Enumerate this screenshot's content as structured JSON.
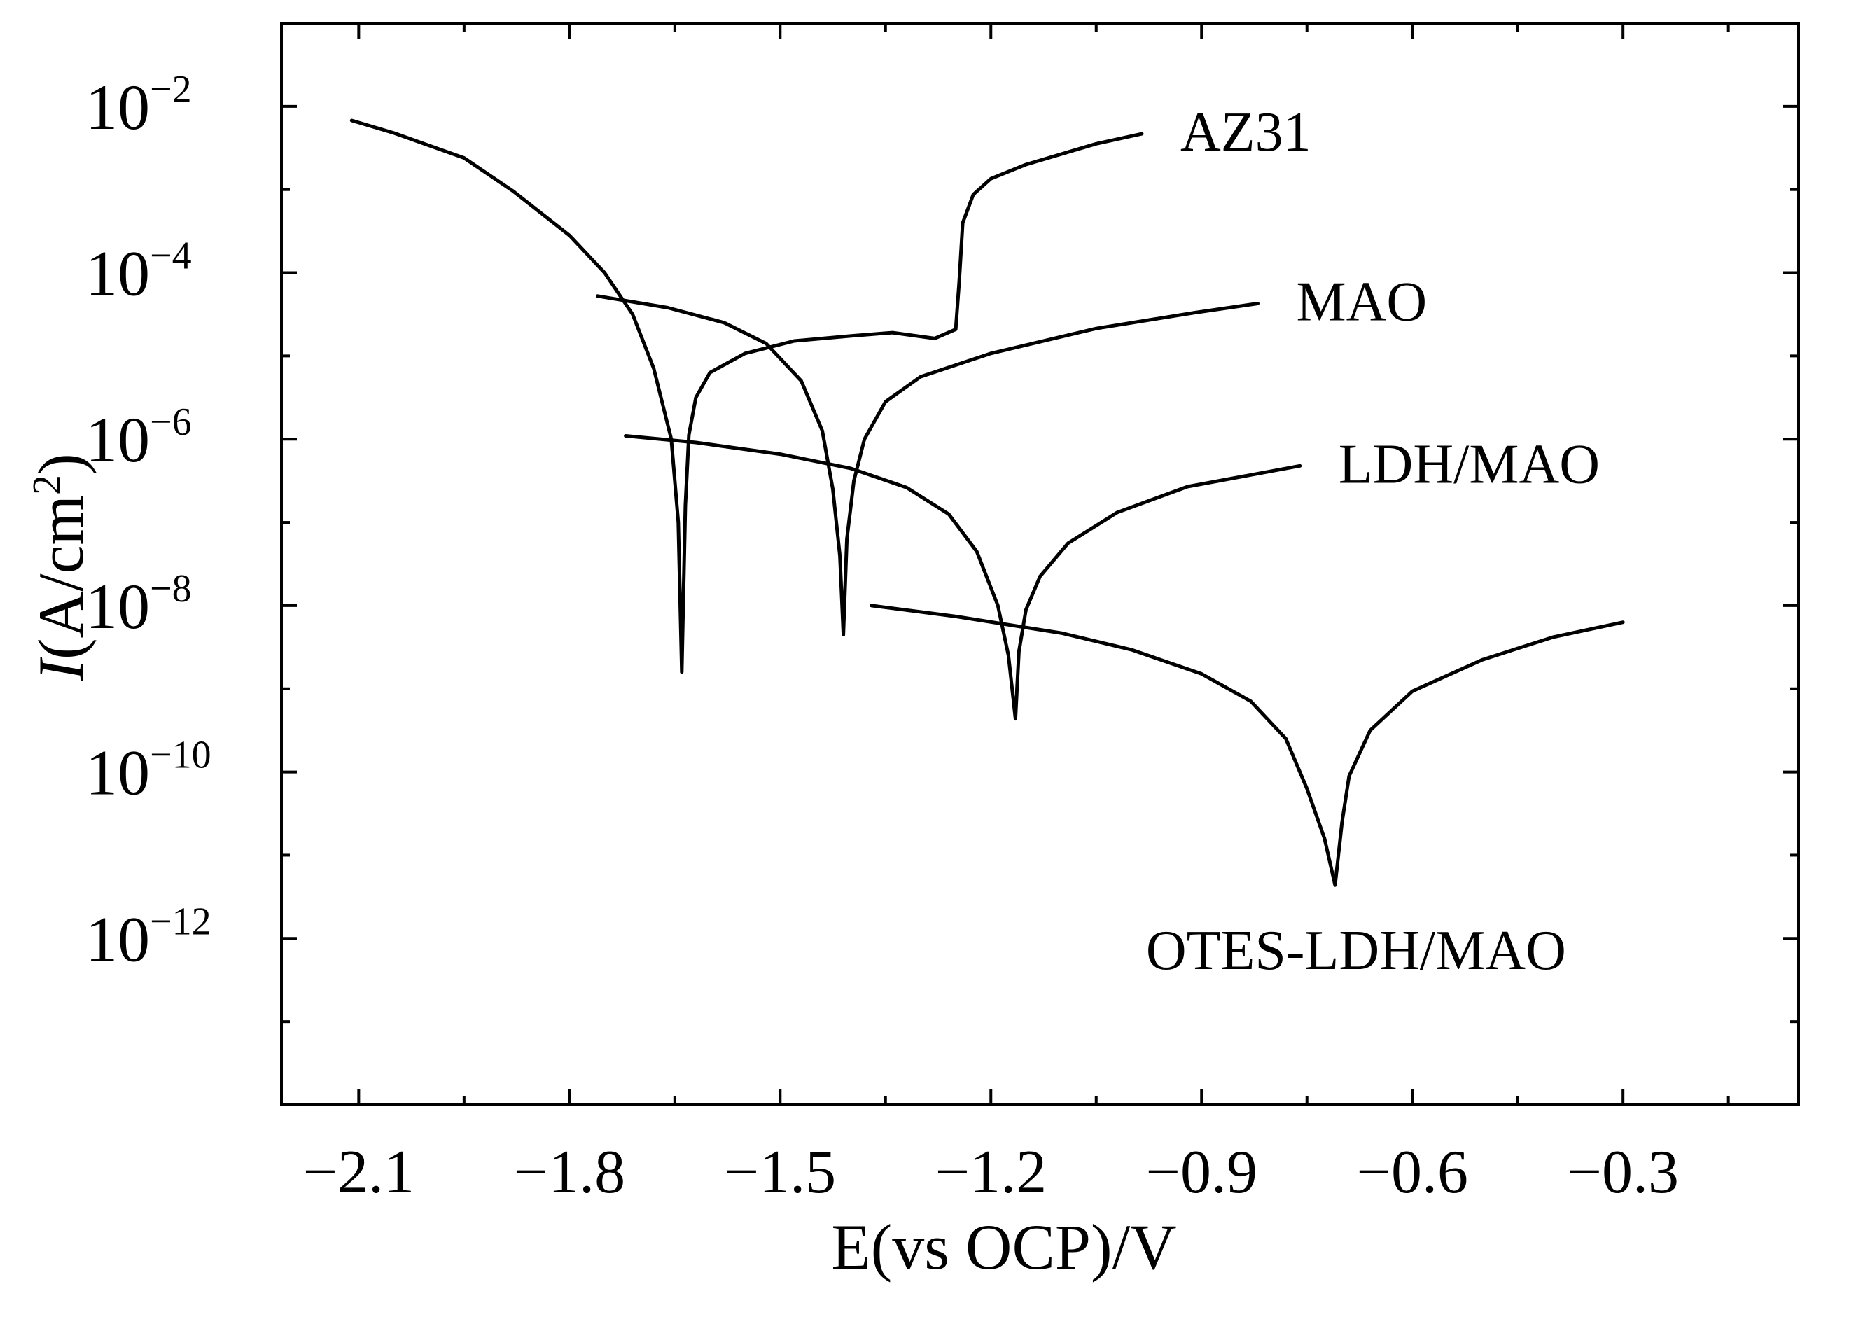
{
  "chart_data": {
    "type": "line",
    "title": "",
    "xlabel": "E(vs OCP)/V",
    "ylabel_main": "I",
    "ylabel_unit": "(A/cm",
    "ylabel_sup": "2",
    "ylabel_close": ")",
    "xlim": [
      -2.21,
      -0.05
    ],
    "x_ticks": [
      -2.1,
      -1.8,
      -1.5,
      -1.2,
      -0.9,
      -0.6,
      -0.3
    ],
    "x_tick_labels": [
      "−2.1",
      "−1.8",
      "−1.5",
      "−1.2",
      "−0.9",
      "−0.6",
      "−0.3"
    ],
    "y_scale": "log",
    "ylim_exponent": [
      -14.0,
      -1.0
    ],
    "y_ticks_exponent": [
      -2,
      -4,
      -6,
      -8,
      -10,
      -12
    ],
    "y_tick_base": "10",
    "y_tick_exponent_labels": [
      "−2",
      "−4",
      "−6",
      "−8",
      "−10",
      "−12"
    ],
    "legend_placement": "inline labels at right end of each curve",
    "series": [
      {
        "name": "AZ31",
        "label": "AZ31",
        "E_corr": -1.64,
        "log_i_corr": -8.8,
        "points": [
          [
            -2.11,
            -2.17
          ],
          [
            -2.05,
            -2.32
          ],
          [
            -1.95,
            -2.62
          ],
          [
            -1.88,
            -3.02
          ],
          [
            -1.8,
            -3.55
          ],
          [
            -1.75,
            -4.0
          ],
          [
            -1.71,
            -4.5
          ],
          [
            -1.68,
            -5.15
          ],
          [
            -1.655,
            -6.0
          ],
          [
            -1.645,
            -7.0
          ],
          [
            -1.64,
            -8.8
          ],
          [
            -1.635,
            -6.8
          ],
          [
            -1.63,
            -5.95
          ],
          [
            -1.62,
            -5.5
          ],
          [
            -1.6,
            -5.2
          ],
          [
            -1.55,
            -4.97
          ],
          [
            -1.48,
            -4.82
          ],
          [
            -1.4,
            -4.76
          ],
          [
            -1.34,
            -4.72
          ],
          [
            -1.28,
            -4.79
          ],
          [
            -1.25,
            -4.68
          ],
          [
            -1.245,
            -4.1
          ],
          [
            -1.24,
            -3.4
          ],
          [
            -1.225,
            -3.06
          ],
          [
            -1.2,
            -2.87
          ],
          [
            -1.15,
            -2.7
          ],
          [
            -1.05,
            -2.45
          ],
          [
            -0.985,
            -2.33
          ]
        ]
      },
      {
        "name": "MAO",
        "label": "MAO",
        "E_corr": -1.41,
        "log_i_corr": -8.35,
        "points": [
          [
            -1.76,
            -4.28
          ],
          [
            -1.66,
            -4.42
          ],
          [
            -1.58,
            -4.6
          ],
          [
            -1.52,
            -4.85
          ],
          [
            -1.47,
            -5.3
          ],
          [
            -1.44,
            -5.9
          ],
          [
            -1.425,
            -6.6
          ],
          [
            -1.415,
            -7.4
          ],
          [
            -1.41,
            -8.35
          ],
          [
            -1.405,
            -7.2
          ],
          [
            -1.395,
            -6.5
          ],
          [
            -1.38,
            -6.0
          ],
          [
            -1.35,
            -5.55
          ],
          [
            -1.3,
            -5.25
          ],
          [
            -1.2,
            -4.97
          ],
          [
            -1.05,
            -4.67
          ],
          [
            -0.91,
            -4.48
          ],
          [
            -0.82,
            -4.37
          ]
        ]
      },
      {
        "name": "LDH/MAO",
        "label": "LDH/MAO",
        "E_corr": -1.165,
        "log_i_corr": -9.36,
        "points": [
          [
            -1.72,
            -5.96
          ],
          [
            -1.62,
            -6.04
          ],
          [
            -1.5,
            -6.18
          ],
          [
            -1.4,
            -6.35
          ],
          [
            -1.32,
            -6.58
          ],
          [
            -1.26,
            -6.9
          ],
          [
            -1.22,
            -7.35
          ],
          [
            -1.19,
            -8.0
          ],
          [
            -1.175,
            -8.6
          ],
          [
            -1.165,
            -9.36
          ],
          [
            -1.16,
            -8.55
          ],
          [
            -1.15,
            -8.05
          ],
          [
            -1.13,
            -7.65
          ],
          [
            -1.09,
            -7.25
          ],
          [
            -1.02,
            -6.88
          ],
          [
            -0.92,
            -6.57
          ],
          [
            -0.76,
            -6.32
          ]
        ]
      },
      {
        "name": "OTES-LDH/MAO",
        "label": "OTES-LDH/MAO",
        "E_corr": -0.71,
        "log_i_corr": -11.36,
        "points": [
          [
            -1.37,
            -8.0
          ],
          [
            -1.25,
            -8.13
          ],
          [
            -1.1,
            -8.33
          ],
          [
            -1.0,
            -8.53
          ],
          [
            -0.9,
            -8.82
          ],
          [
            -0.83,
            -9.15
          ],
          [
            -0.78,
            -9.6
          ],
          [
            -0.75,
            -10.2
          ],
          [
            -0.725,
            -10.8
          ],
          [
            -0.71,
            -11.36
          ],
          [
            -0.7,
            -10.6
          ],
          [
            -0.69,
            -10.05
          ],
          [
            -0.66,
            -9.5
          ],
          [
            -0.6,
            -9.03
          ],
          [
            -0.5,
            -8.65
          ],
          [
            -0.4,
            -8.38
          ],
          [
            -0.3,
            -8.2
          ]
        ]
      }
    ]
  }
}
